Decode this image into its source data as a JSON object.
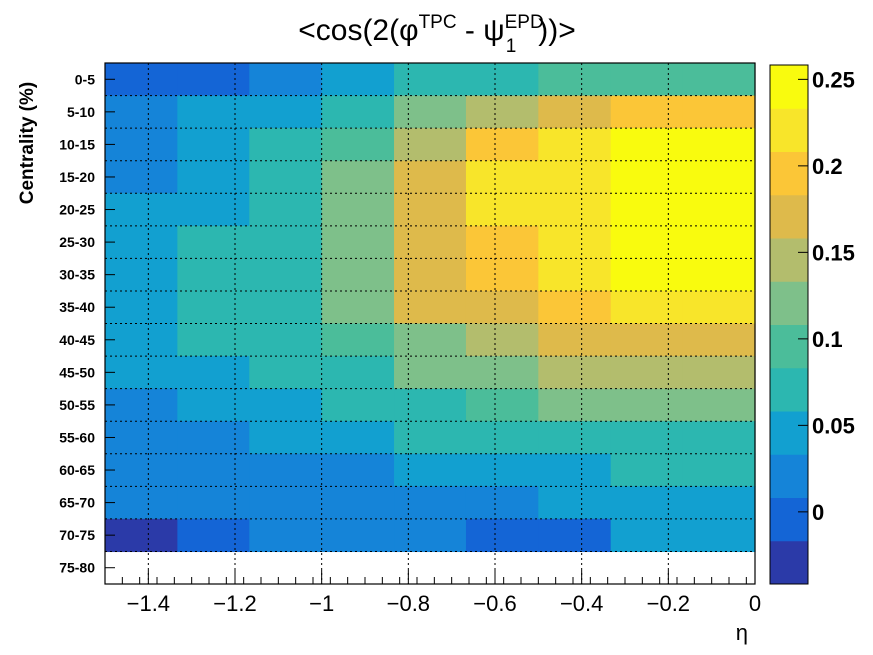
{
  "chart_data": {
    "type": "heatmap",
    "title": {
      "prefix": "<cos(2(φ",
      "sup1": "TPC",
      "mid": " - ψ",
      "sup2": "EPD",
      "sub2": "1",
      "suffix": "))>"
    },
    "xlabel": "η",
    "ylabel": "Centrality (%)",
    "xlim": [
      -1.5,
      0
    ],
    "x_ticks": [
      "−1.4",
      "−1.2",
      "−1",
      "−0.8",
      "−0.6",
      "−0.4",
      "−0.2",
      "0"
    ],
    "x_tick_values": [
      -1.4,
      -1.2,
      -1.0,
      -0.8,
      -0.6,
      -0.4,
      -0.2,
      0
    ],
    "x_edges": [
      -1.5,
      -1.333,
      -1.167,
      -1.0,
      -0.833,
      -0.667,
      -0.5,
      -0.333,
      -0.167,
      0.0
    ],
    "categories": [
      "0-5",
      "5-10",
      "10-15",
      "15-20",
      "20-25",
      "25-30",
      "30-35",
      "35-40",
      "40-45",
      "45-50",
      "50-55",
      "55-60",
      "60-65",
      "65-70",
      "70-75",
      "75-80"
    ],
    "values": [
      [
        0.0,
        0.0,
        0.02,
        0.04,
        0.07,
        0.08,
        0.1,
        0.1,
        0.1
      ],
      [
        0.01,
        0.04,
        0.05,
        0.06,
        0.11,
        0.15,
        0.18,
        0.19,
        0.19
      ],
      [
        0.03,
        0.04,
        0.06,
        0.1,
        0.15,
        0.19,
        0.21,
        0.24,
        0.24
      ],
      [
        0.03,
        0.05,
        0.07,
        0.12,
        0.17,
        0.21,
        0.22,
        0.25,
        0.26
      ],
      [
        0.04,
        0.05,
        0.08,
        0.12,
        0.18,
        0.21,
        0.23,
        0.25,
        0.26
      ],
      [
        0.04,
        0.06,
        0.08,
        0.13,
        0.18,
        0.2,
        0.22,
        0.26,
        0.26
      ],
      [
        0.04,
        0.06,
        0.08,
        0.13,
        0.18,
        0.2,
        0.21,
        0.24,
        0.24
      ],
      [
        0.04,
        0.06,
        0.07,
        0.12,
        0.16,
        0.18,
        0.2,
        0.21,
        0.21
      ],
      [
        0.04,
        0.06,
        0.06,
        0.1,
        0.12,
        0.15,
        0.17,
        0.18,
        0.18
      ],
      [
        0.04,
        0.05,
        0.06,
        0.08,
        0.11,
        0.13,
        0.14,
        0.15,
        0.15
      ],
      [
        0.03,
        0.05,
        0.05,
        0.06,
        0.08,
        0.09,
        0.11,
        0.12,
        0.12
      ],
      [
        0.03,
        0.03,
        0.04,
        0.05,
        0.06,
        0.07,
        0.08,
        0.08,
        0.08
      ],
      [
        0.03,
        0.03,
        0.03,
        0.03,
        0.04,
        0.04,
        0.05,
        0.06,
        0.06
      ],
      [
        0.02,
        0.03,
        0.03,
        0.03,
        0.03,
        0.03,
        0.04,
        0.04,
        0.04
      ],
      [
        -0.04,
        0.0,
        0.03,
        0.03,
        0.01,
        0.0,
        0.0,
        0.04,
        0.04
      ],
      [
        null,
        null,
        null,
        null,
        null,
        null,
        null,
        null,
        null
      ]
    ],
    "zlim": [
      -0.0417,
      0.2583
    ],
    "colorbar_ticks": [
      "0",
      "0.05",
      "0.1",
      "0.15",
      "0.2",
      "0.25"
    ],
    "colorbar_tick_values": [
      0,
      0.05,
      0.1,
      0.15,
      0.2,
      0.25
    ],
    "colormap": [
      "#2b3aa8",
      "#1465d6",
      "#1584d8",
      "#12a0d0",
      "#2cb7b0",
      "#4bbd9a",
      "#7ec08a",
      "#b3bd6d",
      "#deba4b",
      "#fbc637",
      "#f8e52a",
      "#f9fb0e"
    ],
    "grid": true
  }
}
